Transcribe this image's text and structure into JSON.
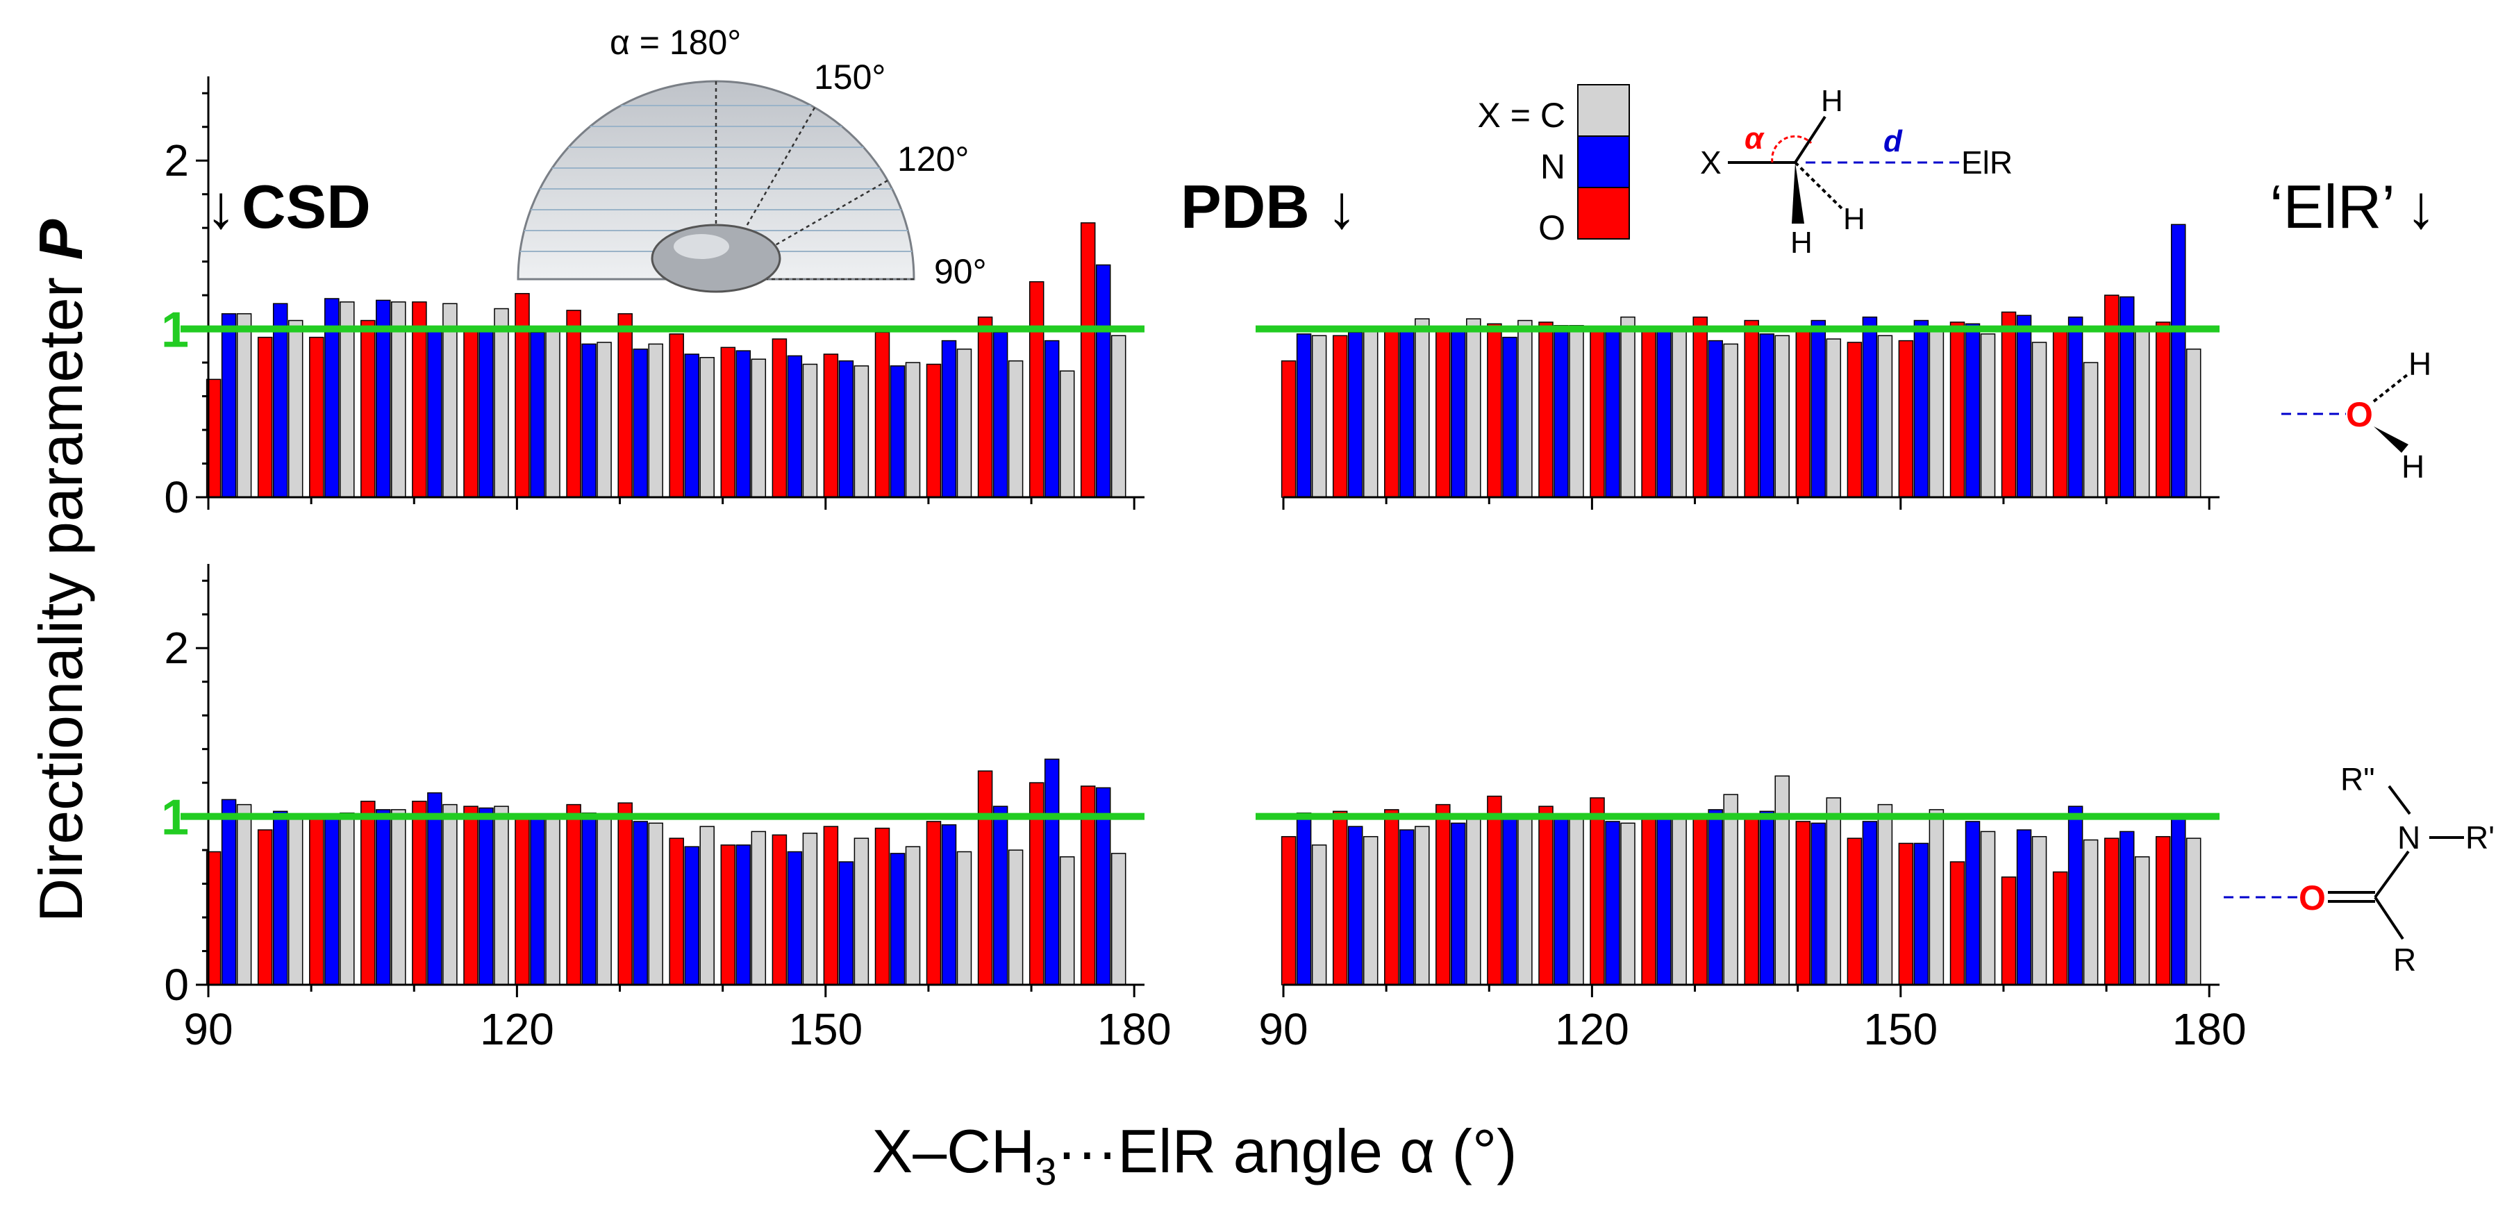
{
  "colors": {
    "C": "#d3d3d3",
    "N": "#0000ff",
    "O": "#ff0000",
    "reference_line": "#22cc22",
    "axis": "#000000",
    "dashed_bond": "#0000cc",
    "alpha_arc": "#ff0000"
  },
  "y_label_main": "Directionality parameter ",
  "y_label_symbol": "P",
  "x_label_prefix": "X–CH",
  "x_label_sub": "3",
  "x_label_suffix": "···ElR angle α (°)",
  "y_ticks": [
    "0",
    "1",
    "2"
  ],
  "x_ticks": [
    "90",
    "120",
    "150",
    "180"
  ],
  "reference_label": "1",
  "headers": {
    "csd": "CSD",
    "pdb": "PDB",
    "elr": "‘ElR’"
  },
  "arrow_glyph": "↓",
  "legend": [
    {
      "label": "X = C",
      "key": "C"
    },
    {
      "label": "N",
      "key": "N"
    },
    {
      "label": "O",
      "key": "O"
    }
  ],
  "angle_inset": {
    "labels": [
      "α = 180°",
      "150°",
      "120°",
      "90°"
    ]
  },
  "methyl_scheme": {
    "x": "X",
    "h": "H",
    "alpha": "α",
    "d": "d",
    "elr": "ElR"
  },
  "water_scheme": {
    "o": "O",
    "h": "H"
  },
  "amide_scheme": {
    "o": "O",
    "n": "N",
    "r": "R",
    "r1": "R'",
    "r2": "R\""
  },
  "chart_data": [
    {
      "type": "bar",
      "panel": "top-left",
      "source": "CSD",
      "acceptor": "water",
      "x": [
        92,
        97,
        102,
        107,
        112,
        117,
        122,
        127,
        132,
        137,
        142,
        147,
        152,
        157,
        162,
        167,
        172,
        177
      ],
      "series": [
        {
          "name": "O",
          "values": [
            0.7,
            0.95,
            0.95,
            1.05,
            1.16,
            1.0,
            1.21,
            1.11,
            1.09,
            0.97,
            0.89,
            0.94,
            0.85,
            0.98,
            0.79,
            1.07,
            1.28,
            1.63
          ]
        },
        {
          "name": "N",
          "values": [
            1.09,
            1.15,
            1.18,
            1.17,
            1.0,
            1.0,
            0.98,
            0.91,
            0.88,
            0.85,
            0.87,
            0.84,
            0.81,
            0.78,
            0.93,
            0.98,
            0.93,
            1.38
          ]
        },
        {
          "name": "C",
          "values": [
            1.09,
            1.05,
            1.16,
            1.16,
            1.15,
            1.12,
            1.0,
            0.92,
            0.91,
            0.83,
            0.82,
            0.79,
            0.78,
            0.8,
            0.88,
            0.81,
            0.75,
            0.96
          ]
        }
      ],
      "xlim": [
        90,
        181
      ],
      "ylim": [
        0,
        2.5
      ],
      "reference_value": 1
    },
    {
      "type": "bar",
      "panel": "top-right",
      "source": "PDB",
      "acceptor": "water",
      "x": [
        92,
        97,
        102,
        107,
        112,
        117,
        122,
        127,
        132,
        137,
        142,
        147,
        152,
        157,
        162,
        167,
        172,
        177
      ],
      "series": [
        {
          "name": "O",
          "values": [
            0.81,
            0.96,
            1.0,
            1.01,
            1.03,
            1.04,
            1.0,
            1.0,
            1.07,
            1.05,
            1.01,
            0.92,
            0.93,
            1.04,
            1.1,
            1.01,
            1.2,
            1.04
          ]
        },
        {
          "name": "N",
          "values": [
            0.97,
            0.98,
            0.99,
            0.99,
            0.95,
            1.02,
            0.99,
            0.99,
            0.93,
            0.97,
            1.05,
            1.07,
            1.05,
            1.03,
            1.08,
            1.07,
            1.19,
            1.62
          ]
        },
        {
          "name": "C",
          "values": [
            0.96,
            1.0,
            1.06,
            1.06,
            1.05,
            1.02,
            1.07,
            1.0,
            0.91,
            0.96,
            0.94,
            0.96,
            1.0,
            0.97,
            0.92,
            0.8,
            1.0,
            0.88
          ]
        }
      ],
      "xlim": [
        90,
        181
      ],
      "ylim": [
        0,
        2.5
      ],
      "reference_value": 1
    },
    {
      "type": "bar",
      "panel": "bottom-left",
      "source": "CSD",
      "acceptor": "amide",
      "x": [
        92,
        97,
        102,
        107,
        112,
        117,
        122,
        127,
        132,
        137,
        142,
        147,
        152,
        157,
        162,
        167,
        172,
        177
      ],
      "series": [
        {
          "name": "O",
          "values": [
            0.79,
            0.92,
            1.0,
            1.09,
            1.09,
            1.06,
            1.0,
            1.07,
            1.08,
            0.87,
            0.83,
            0.89,
            0.94,
            0.93,
            0.97,
            1.27,
            1.2,
            1.18
          ]
        },
        {
          "name": "N",
          "values": [
            1.1,
            1.03,
            1.0,
            1.04,
            1.14,
            1.05,
            1.0,
            1.02,
            0.97,
            0.82,
            0.83,
            0.79,
            0.73,
            0.78,
            0.95,
            1.06,
            1.34,
            1.17
          ]
        },
        {
          "name": "C",
          "values": [
            1.07,
            1.0,
            1.02,
            1.04,
            1.07,
            1.06,
            1.01,
            1.0,
            0.96,
            0.94,
            0.91,
            0.9,
            0.87,
            0.82,
            0.79,
            0.8,
            0.76,
            0.78
          ]
        }
      ],
      "xlim": [
        90,
        181
      ],
      "ylim": [
        0,
        2.5
      ],
      "reference_value": 1
    },
    {
      "type": "bar",
      "panel": "bottom-right",
      "source": "PDB",
      "acceptor": "amide",
      "x": [
        92,
        97,
        102,
        107,
        112,
        117,
        122,
        127,
        132,
        137,
        142,
        147,
        152,
        157,
        162,
        167,
        172,
        177
      ],
      "series": [
        {
          "name": "O",
          "values": [
            0.88,
            1.03,
            1.04,
            1.07,
            1.12,
            1.06,
            1.11,
            1.0,
            1.01,
            1.0,
            0.97,
            0.87,
            0.84,
            0.73,
            0.64,
            0.67,
            0.87,
            0.88
          ]
        },
        {
          "name": "N",
          "values": [
            1.02,
            0.94,
            0.92,
            0.96,
            1.0,
            1.0,
            0.97,
            1.0,
            1.04,
            1.03,
            0.96,
            0.97,
            0.84,
            0.97,
            0.92,
            1.06,
            0.91,
            1.0
          ]
        },
        {
          "name": "C",
          "values": [
            0.83,
            0.88,
            0.94,
            1.0,
            1.0,
            1.0,
            0.96,
            1.0,
            1.13,
            1.24,
            1.11,
            1.07,
            1.04,
            0.91,
            0.88,
            0.86,
            0.76,
            0.87
          ]
        }
      ],
      "xlim": [
        90,
        181
      ],
      "ylim": [
        0,
        2.5
      ],
      "reference_value": 1
    }
  ]
}
